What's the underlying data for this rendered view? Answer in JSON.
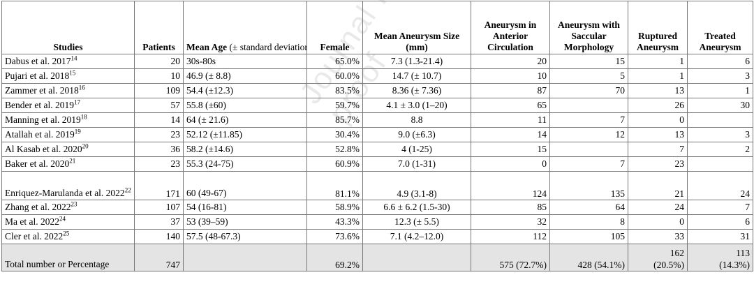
{
  "headers": {
    "studies": "Studies",
    "patients": "Patients",
    "mean_age_bold": "Mean Age",
    "mean_age_rest": " (± standard deviation)",
    "female": "Female",
    "size": "Mean Aneurysm Size (mm)",
    "anterior": "Aneurysm in Anterior Circulation",
    "saccular": "Aneurysm with Saccular Morphology",
    "ruptured": "Ruptured Aneurysm",
    "treated": "Treated Aneurysm"
  },
  "rows": [
    {
      "study": "Dabus et al. 2017",
      "ref": "14",
      "patients": "20",
      "age": "30s-80s",
      "female": "65.0%",
      "size": "7.3 (1.3-21.4)",
      "anterior": "20",
      "saccular": "15",
      "ruptured": "1",
      "treated": "6"
    },
    {
      "study": "Pujari et al. 2018",
      "ref": "15",
      "patients": "10",
      "age": "46.9 (± 8.8)",
      "female": "60.0%",
      "size": "14.7 (± 10.7)",
      "anterior": "10",
      "saccular": "5",
      "ruptured": "1",
      "treated": "3"
    },
    {
      "study": "Zammer et al. 2018",
      "ref": "16",
      "patients": "109",
      "age": "54.4 (±12.3)",
      "female": "83.5%",
      "size": "8.36 (± 7.36)",
      "anterior": "87",
      "saccular": "70",
      "ruptured": "13",
      "treated": "1"
    },
    {
      "study": "Bender et al. 2019",
      "ref": "17",
      "patients": "57",
      "age": "55.8 (±60)",
      "female": "59.7%",
      "size": "4.1 ± 3.0 (1–20)",
      "anterior": "65",
      "saccular": "",
      "ruptured": "26",
      "treated": "30"
    },
    {
      "study": "Manning et al. 2019",
      "ref": "18",
      "patients": "14",
      "age": "64 (± 21.6)",
      "female": "85.7%",
      "size": "8.8",
      "anterior": "11",
      "saccular": "7",
      "ruptured": "0",
      "treated": ""
    },
    {
      "study": "Atallah et al. 2019",
      "ref": "19",
      "patients": "23",
      "age": "52.12 (±11.85)",
      "female": "30.4%",
      "size": "9.0 (±6.3)",
      "anterior": "14",
      "saccular": "12",
      "ruptured": "13",
      "treated": "3"
    },
    {
      "study": "Al Kasab et al. 2020",
      "ref": "20",
      "patients": "36",
      "age": "58.2 (±14.6)",
      "female": "52.8%",
      "size": "4 (1-25)",
      "anterior": "15",
      "saccular": "",
      "ruptured": "7",
      "treated": "2"
    },
    {
      "study": "Baker et al. 2020",
      "ref": "21",
      "patients": "23",
      "age": "55.3 (24-75)",
      "female": "60.9%",
      "size": "7.0 (1-31)",
      "anterior": "0",
      "saccular": "7",
      "ruptured": "23",
      "treated": ""
    },
    {
      "study": "Enriquez-Marulanda et al. 2022",
      "ref": "22",
      "patients": "171",
      "age": "60 (49-67)",
      "female": "81.1%",
      "size": "4.9 (3.1-8)",
      "anterior": "124",
      "saccular": "135",
      "ruptured": "21",
      "treated": "24"
    },
    {
      "study": "Zhang et al. 2022",
      "ref": "23",
      "patients": "107",
      "age": "54 (16-81)",
      "female": "58.9%",
      "size": "6.6 ± 6.2 (1.5-30)",
      "anterior": "85",
      "saccular": "64",
      "ruptured": "24",
      "treated": "7"
    },
    {
      "study": "Ma et al. 2022",
      "ref": "24",
      "patients": "37",
      "age": "53 (39–59)",
      "female": "43.3%",
      "size": "12.3 (± 5.5)",
      "anterior": "32",
      "saccular": "8",
      "ruptured": "0",
      "treated": "6"
    },
    {
      "study": "Cler et al. 2022",
      "ref": "25",
      "patients": "140",
      "age": "57.5 (48-67.3)",
      "female": "73.6%",
      "size": "7.1 (4.2–12.0)",
      "anterior": "112",
      "saccular": "105",
      "ruptured": "33",
      "treated": "31"
    }
  ],
  "total": {
    "label": "Total number or Percentage",
    "patients": "747",
    "female": "69.2%",
    "anterior": "575 (72.7%)",
    "saccular": "428 (54.1%)",
    "ruptured_n": "162",
    "ruptured_pct": "(20.5%)",
    "treated_n": "113",
    "treated_pct": "(14.3%)"
  },
  "watermark": "Journal Pre-proof"
}
